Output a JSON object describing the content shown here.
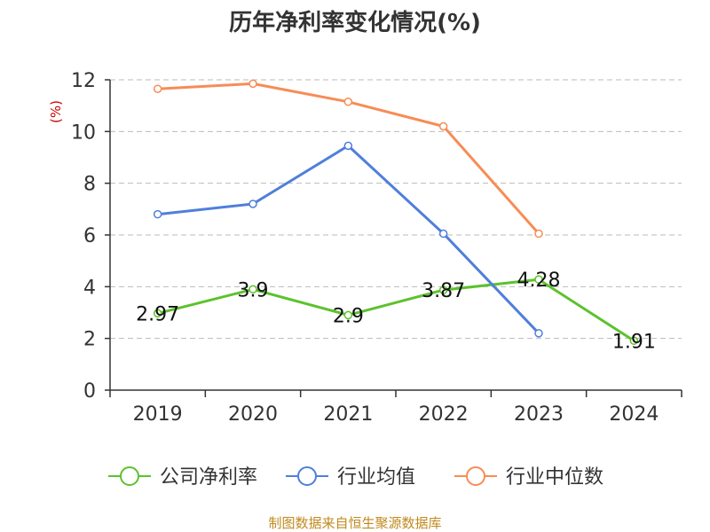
{
  "chart_data": {
    "type": "line",
    "title": "历年净利率变化情况(%)",
    "ylabel": "(%)",
    "xlabel": "",
    "categories": [
      "2019",
      "2020",
      "2021",
      "2022",
      "2023",
      "2024"
    ],
    "ylim": [
      0,
      12
    ],
    "yticks": [
      0,
      2,
      4,
      6,
      8,
      10,
      12
    ],
    "grid": true,
    "legend_position": "bottom",
    "series": [
      {
        "name": "公司净利率",
        "color": "#5cc22c",
        "values": [
          2.97,
          3.9,
          2.9,
          3.87,
          4.28,
          1.91
        ],
        "labels": [
          "2.97",
          "3.9",
          "2.9",
          "3.87",
          "4.28",
          "1.91"
        ],
        "show_labels": true
      },
      {
        "name": "行业均值",
        "color": "#4f7fdb",
        "values": [
          6.8,
          7.2,
          9.45,
          6.05,
          2.2,
          null
        ],
        "show_labels": false
      },
      {
        "name": "行业中位数",
        "color": "#f78c55",
        "values": [
          11.65,
          11.85,
          11.15,
          10.2,
          6.05,
          null
        ],
        "show_labels": false
      }
    ]
  },
  "source": "制图数据来自恒生聚源数据库"
}
